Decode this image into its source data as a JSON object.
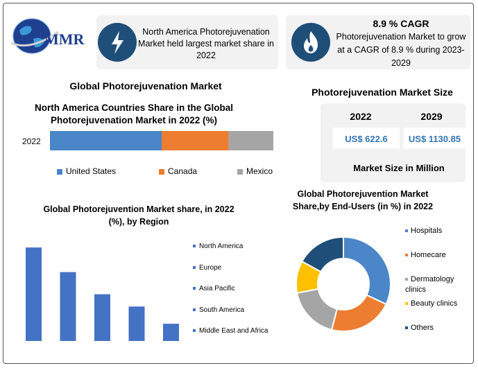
{
  "logo": {
    "text": "MMR"
  },
  "cards": {
    "north_america": "North America Photorejuvenation Market held largest market share in 2022",
    "cagr_title": "8.9 % CAGR",
    "cagr_text": "Photorejuvenation Market to grow at a CAGR of 8.9 % during 2023-2029"
  },
  "main_title": "Global Photorejuvenation Market",
  "market_size": {
    "title": "Photorejuvenation Market Size",
    "year1": "2022",
    "year2": "2029",
    "value1": "US$ 622.6",
    "value2": "US$ 1130.85",
    "footer": "Market Size in Million"
  },
  "colors": {
    "blue": "#4a86c8",
    "orange": "#ed7d31",
    "gray": "#a5a5a5",
    "yellow": "#ffc000",
    "navy": "#1f4e79",
    "bar_blue": "#4472c4"
  },
  "chart_data": [
    {
      "type": "bar",
      "orientation": "horizontal-stacked",
      "title": "North America Countries Share in the Global Photorejuvenation Market in 2022 (%)",
      "categories": [
        "2022"
      ],
      "series": [
        {
          "name": "United States",
          "values": [
            50
          ]
        },
        {
          "name": "Canada",
          "values": [
            30
          ]
        },
        {
          "name": "Mexico",
          "values": [
            20
          ]
        }
      ],
      "legend": "bottom"
    },
    {
      "type": "bar",
      "title": "Global Photorejuvention Market share, in 2022 (%), by Region",
      "categories": [
        "North America",
        "Europe",
        "Asia Pacific",
        "South America",
        "Middle East and Africa"
      ],
      "values": [
        38,
        28,
        19,
        14,
        7
      ],
      "legend": "right"
    },
    {
      "type": "pie",
      "variant": "donut",
      "title": "Global Photorejuvention Market Share,by End-Users (in %) in 2022",
      "categories": [
        "Hospitals",
        "Homecare",
        "Dermatology clinics",
        "Beauty clinics",
        "Others"
      ],
      "values": [
        32,
        22,
        18,
        11,
        17
      ],
      "legend": "right"
    }
  ]
}
